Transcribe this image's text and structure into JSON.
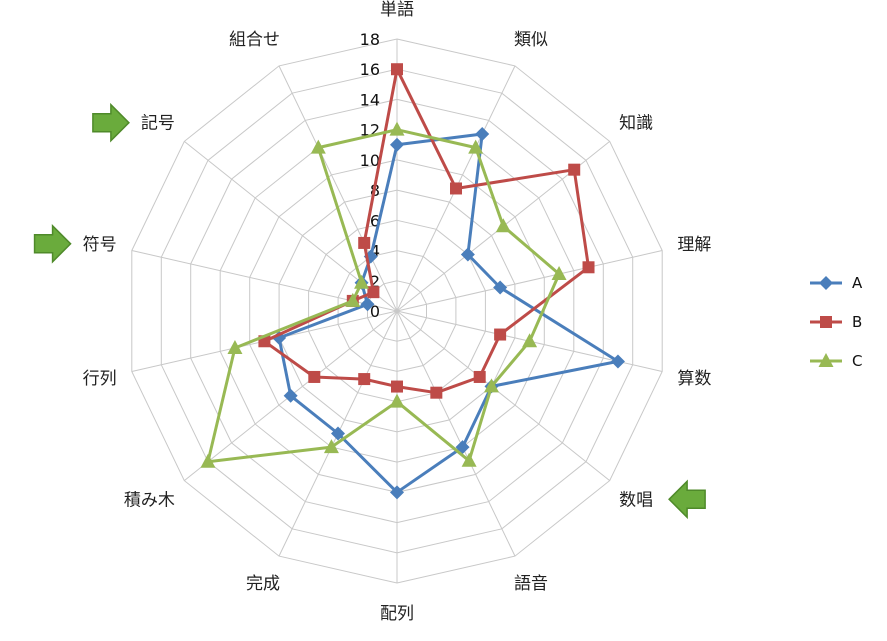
{
  "chart_data": {
    "type": "radar",
    "title": "",
    "categories": [
      "単語",
      "類似",
      "知識",
      "理解",
      "算数",
      "数唱",
      "語音",
      "配列",
      "完成",
      "積み木",
      "行列",
      "符号",
      "記号",
      "組合せ"
    ],
    "rmin": 0,
    "rmax": 18,
    "ticks": [
      0,
      2,
      4,
      6,
      8,
      10,
      12,
      14,
      16,
      18
    ],
    "grid": true,
    "legend_position": "right",
    "series": [
      {
        "name": "A",
        "color": "#4a7ebb",
        "marker": "diamond",
        "values": [
          11,
          13,
          6,
          7,
          15,
          8,
          10,
          12,
          9,
          9,
          8,
          2,
          3,
          4
        ]
      },
      {
        "name": "B",
        "color": "#be4b48",
        "marker": "square",
        "values": [
          16,
          9,
          15,
          13,
          7,
          7,
          6,
          5,
          5,
          7,
          9,
          3,
          2,
          5
        ]
      },
      {
        "name": "C",
        "color": "#98b954",
        "marker": "triangle",
        "values": [
          12,
          12,
          9,
          11,
          9,
          8,
          11,
          6,
          10,
          16,
          11,
          3,
          3,
          12
        ]
      }
    ],
    "highlighted_categories": [
      {
        "category": "記号",
        "icon": "green-arrow-right-icon"
      },
      {
        "category": "符号",
        "icon": "green-arrow-right-icon"
      },
      {
        "category": "数唱",
        "icon": "green-arrow-left-icon"
      }
    ]
  }
}
